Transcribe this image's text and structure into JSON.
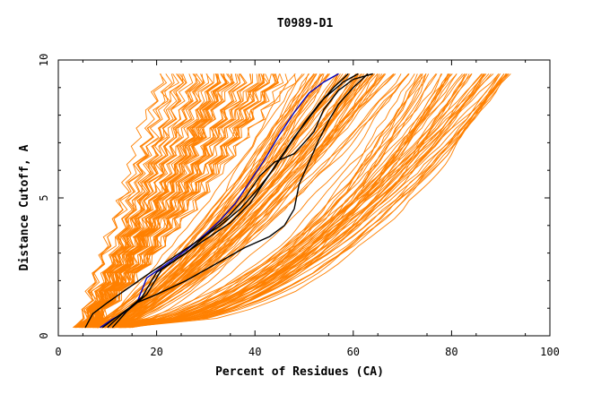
{
  "chart_data": {
    "type": "line",
    "title": "T0989-D1",
    "xlabel": "Percent of Residues (CA)",
    "ylabel": "Distance Cutoff, A",
    "xlim": [
      0,
      100
    ],
    "ylim": [
      0,
      10
    ],
    "x_ticks": [
      "0",
      "20",
      "40",
      "60",
      "80",
      "100"
    ],
    "y_ticks": [
      "0",
      "5",
      "10"
    ],
    "grid": false,
    "legend": "none",
    "colors": {
      "background_models": "#ff8000",
      "highlight_black": "#000000",
      "highlight_blue": "#0000c0",
      "frame": "#000000"
    },
    "highlighted_series": [
      {
        "color": "#0000c0",
        "points": [
          [
            8.5,
            0.3
          ],
          [
            11,
            0.6
          ],
          [
            14,
            0.9
          ],
          [
            16,
            1.2
          ],
          [
            18,
            2.1
          ],
          [
            22,
            2.6
          ],
          [
            26,
            3.1
          ],
          [
            30,
            3.7
          ],
          [
            33,
            4.2
          ],
          [
            36,
            4.8
          ],
          [
            39,
            5.6
          ],
          [
            42,
            6.4
          ],
          [
            45,
            7.3
          ],
          [
            48,
            8.1
          ],
          [
            51,
            8.8
          ],
          [
            54,
            9.2
          ],
          [
            57,
            9.5
          ]
        ]
      },
      {
        "color": "#000000",
        "points": [
          [
            5.5,
            0.3
          ],
          [
            7,
            0.8
          ],
          [
            10,
            1.2
          ],
          [
            14,
            1.7
          ],
          [
            18,
            2.2
          ],
          [
            23,
            2.8
          ],
          [
            28,
            3.4
          ],
          [
            33,
            4.0
          ],
          [
            37,
            4.6
          ],
          [
            41,
            5.4
          ],
          [
            44,
            6.1
          ],
          [
            47,
            6.9
          ],
          [
            50,
            7.7
          ],
          [
            53,
            8.4
          ],
          [
            56,
            9.0
          ],
          [
            59,
            9.5
          ]
        ]
      },
      {
        "color": "#000000",
        "points": [
          [
            9,
            0.3
          ],
          [
            12,
            0.7
          ],
          [
            16,
            1.2
          ],
          [
            20,
            1.5
          ],
          [
            26,
            2.0
          ],
          [
            32,
            2.6
          ],
          [
            38,
            3.2
          ],
          [
            43,
            3.6
          ],
          [
            46,
            4.0
          ],
          [
            48,
            4.6
          ],
          [
            49,
            5.5
          ],
          [
            51,
            6.3
          ],
          [
            53,
            7.1
          ],
          [
            55,
            7.8
          ],
          [
            57,
            8.4
          ],
          [
            60,
            9.0
          ],
          [
            63,
            9.5
          ]
        ]
      },
      {
        "color": "#000000",
        "points": [
          [
            10,
            0.3
          ],
          [
            13,
            0.8
          ],
          [
            17,
            1.4
          ],
          [
            20,
            2.3
          ],
          [
            25,
            2.9
          ],
          [
            30,
            3.5
          ],
          [
            35,
            4.1
          ],
          [
            39,
            4.8
          ],
          [
            42,
            5.6
          ],
          [
            45,
            6.4
          ],
          [
            48,
            7.2
          ],
          [
            51,
            7.9
          ],
          [
            54,
            8.6
          ],
          [
            58,
            9.2
          ],
          [
            61,
            9.5
          ]
        ]
      },
      {
        "color": "#000000",
        "points": [
          [
            11,
            0.3
          ],
          [
            14,
            0.9
          ],
          [
            18,
            1.5
          ],
          [
            21,
            2.4
          ],
          [
            26,
            3.0
          ],
          [
            31,
            3.8
          ],
          [
            35,
            4.4
          ],
          [
            38,
            5.0
          ],
          [
            41,
            5.8
          ],
          [
            44,
            6.3
          ],
          [
            48,
            6.6
          ],
          [
            52,
            7.4
          ],
          [
            54,
            8.2
          ],
          [
            57,
            8.9
          ],
          [
            60,
            9.3
          ],
          [
            64,
            9.5
          ]
        ]
      }
    ]
  }
}
